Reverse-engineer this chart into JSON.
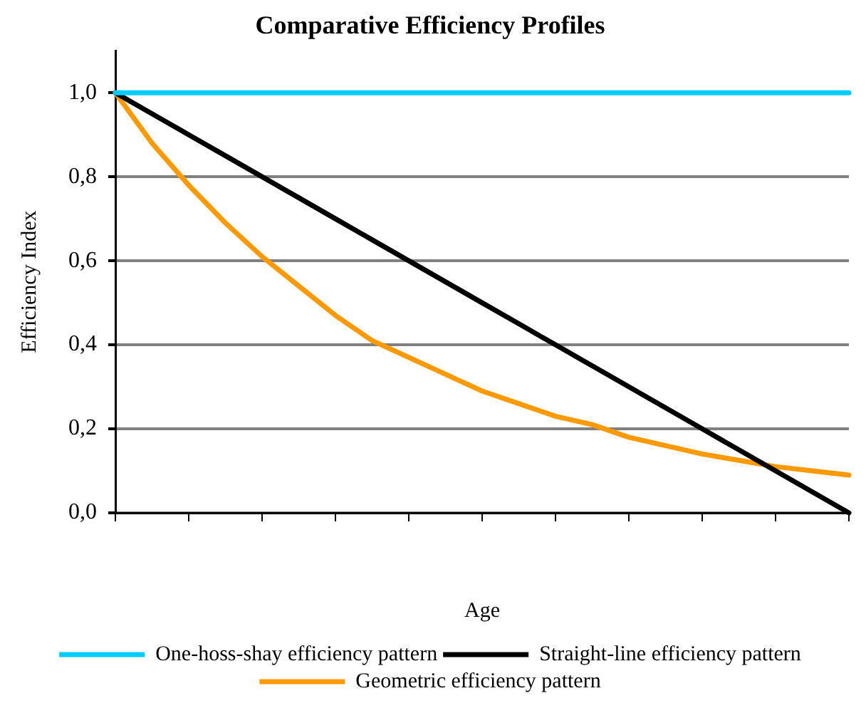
{
  "chart_data": {
    "type": "line",
    "title": "Comparative Efficiency Profiles",
    "xlabel": "Age",
    "ylabel": "Efficiency Index",
    "categories": [
      null,
      null,
      null,
      null,
      null,
      null,
      null,
      null,
      null,
      null,
      null,
      null,
      null,
      null,
      null,
      null,
      null,
      null,
      null,
      null,
      null
    ],
    "ylim": [
      0,
      1.1
    ],
    "yticks": [
      {
        "value": 0,
        "label": "0,0"
      },
      {
        "value": 0.2,
        "label": "0,2"
      },
      {
        "value": 0.4,
        "label": "0,4"
      },
      {
        "value": 0.6,
        "label": "0,6"
      },
      {
        "value": 0.8,
        "label": "0,8"
      },
      {
        "value": 1,
        "label": "1,0"
      }
    ],
    "grid": "y",
    "legend": "bottom",
    "marker": "none",
    "line_style": "solid",
    "series": [
      {
        "name": "One-hoss-shay efficiency pattern",
        "color": "#00ccff",
        "values": [
          1,
          1,
          1,
          1,
          1,
          1,
          1,
          1,
          1,
          1,
          1,
          1,
          1,
          1,
          1,
          1,
          1,
          1,
          1,
          1,
          1
        ]
      },
      {
        "name": "Straight-line efficiency pattern",
        "color": "#000000",
        "values": [
          1,
          0.95,
          0.9,
          0.85,
          0.8,
          0.75,
          0.7,
          0.65,
          0.6,
          0.55,
          0.5,
          0.45,
          0.4,
          0.35,
          0.3,
          0.25,
          0.2,
          0.15,
          0.1,
          0.05,
          0
        ]
      },
      {
        "name": "Geometric efficiency pattern",
        "color": "#ff9900",
        "values": [
          1,
          0.88,
          0.78,
          0.69,
          0.61,
          0.54,
          0.47,
          0.41,
          0.37,
          0.33,
          0.29,
          0.26,
          0.23,
          0.21,
          0.18,
          0.16,
          0.14,
          0.125,
          0.11,
          0.1,
          0.09
        ]
      }
    ]
  }
}
